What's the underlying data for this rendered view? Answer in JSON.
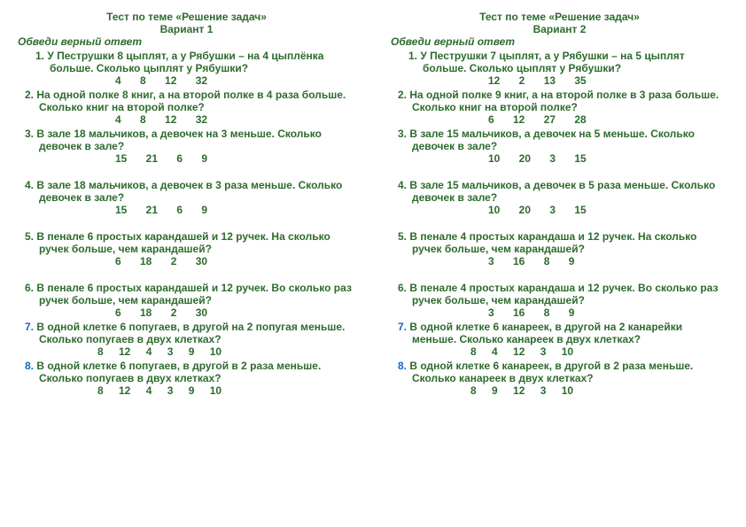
{
  "colors": {
    "text": "#2e6b2e",
    "accent": "#1565c0",
    "bg": "#ffffff"
  },
  "typography": {
    "family": "Verdana",
    "size_pt": 9,
    "weight": "bold"
  },
  "left": {
    "title": "Тест по теме «Решение задач»",
    "variant": "Вариант 1",
    "instruction": "Обведи верный ответ",
    "questions": [
      {
        "n": "1.",
        "text": "У Пеструшки 8 цыплят, а у Рябушки – на 4 цыплёнка больше. Сколько цыплят у Рябушки?",
        "answers": "4 8 12 32"
      },
      {
        "n": "2.",
        "text": "На одной полке 8 книг, а на второй полке в 4 раза больше. Сколько книг на второй полке?",
        "answers": "4 8 12 32"
      },
      {
        "n": "3.",
        "text": "В зале 18 мальчиков, а девочек на 3 меньше. Сколько девочек в зале?",
        "answers": "15 21 6 9"
      },
      {
        "n": "4.",
        "text": "В зале 18 мальчиков, а девочек в 3 раза меньше. Сколько девочек в зале?",
        "answers": "15 21 6 9"
      },
      {
        "n": "5.",
        "text": "В пенале 6 простых карандашей и 12 ручек. На сколько ручек больше, чем карандашей?",
        "answers": "6 18 2 30"
      },
      {
        "n": "6.",
        "text": "В пенале 6 простых карандашей и 12 ручек. Во сколько раз ручек больше, чем карандашей?",
        "answers": "6 18 2 30"
      },
      {
        "n": "7.",
        "accent": true,
        "text": "В одной клетке 6 попугаев, в другой на 2 попугая меньше. Сколько попугаев в двух клетках?",
        "answers": "8 12 4 3 9 10"
      },
      {
        "n": "8.",
        "accent": true,
        "text": "В одной клетке 6 попугаев, в другой в 2 раза меньше. Сколько попугаев в двух клетках?",
        "answers": "8 12 4 3 9 10"
      }
    ]
  },
  "right": {
    "title": "Тест по теме «Решение задач»",
    "variant": "Вариант 2",
    "instruction": "Обведи верный ответ",
    "questions": [
      {
        "n": "1.",
        "text": "У Пеструшки 7 цыплят, а у Рябушки – на 5 цыплят больше. Сколько цыплят у Рябушки?",
        "answers": "12 2 13 35"
      },
      {
        "n": "2.",
        "text": "На одной полке 9 книг, а на второй полке в 3 раза больше. Сколько книг на второй полке?",
        "answers": "6 12 27 28"
      },
      {
        "n": "3.",
        "text": "В зале 15 мальчиков, а девочек на 5 меньше. Сколько девочек в зале?",
        "answers": "10 20 3 15"
      },
      {
        "n": "4.",
        "text": "В зале 15 мальчиков, а девочек в 5 раза меньше. Сколько девочек в зале?",
        "answers": "10 20 3 15"
      },
      {
        "n": "5.",
        "text": "В пенале 4 простых карандаша и 12 ручек. На сколько ручек больше, чем карандашей?",
        "answers": "3 16 8 9"
      },
      {
        "n": "6.",
        "text": "В пенале 4 простых карандаша и 12 ручек. Во сколько раз ручек больше, чем карандашей?",
        "answers": "3 16 8 9"
      },
      {
        "n": "7.",
        "accent": true,
        "text": "В одной клетке 6 канареек, в другой на 2 канарейки меньше. Сколько канареек в двух клетках?",
        "answers": "8 4 12 3 10"
      },
      {
        "n": "8.",
        "accent": true,
        "text": "В одной клетке 6 канареек, в другой в 2 раза меньше. Сколько канареек в двух клетках?",
        "answers": "8 9 12 3 10"
      }
    ]
  }
}
